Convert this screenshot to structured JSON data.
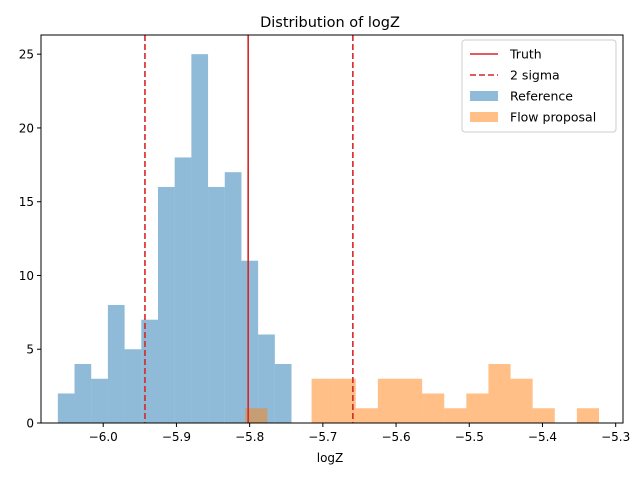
{
  "chart_data": {
    "type": "histogram",
    "title": "Distribution of logZ",
    "xlabel": "logZ",
    "ylabel": "",
    "xlim": [
      -6.085,
      -5.29
    ],
    "ylim": [
      0,
      26.3
    ],
    "xticks": [
      -6.0,
      -5.9,
      -5.8,
      -5.7,
      -5.6,
      -5.5,
      -5.4,
      -5.3
    ],
    "xtick_labels": [
      "−6.0",
      "−5.9",
      "−5.8",
      "−5.7",
      "−5.6",
      "−5.5",
      "−5.4",
      "−5.3"
    ],
    "yticks": [
      0,
      5,
      10,
      15,
      20,
      25
    ],
    "ytick_labels": [
      "0",
      "5",
      "10",
      "15",
      "20",
      "25"
    ],
    "grid": false,
    "legend_position": "top-right",
    "series": [
      {
        "name": "Reference",
        "color": "#1f77b4",
        "alpha": 0.5,
        "bin_edges": [
          -6.062,
          -6.0392,
          -6.0164,
          -5.9936,
          -5.9708,
          -5.948,
          -5.9252,
          -5.9024,
          -5.8796,
          -5.8568,
          -5.834,
          -5.8112,
          -5.7884,
          -5.7656,
          -5.7428
        ],
        "counts": [
          2,
          4,
          3,
          8,
          5,
          7,
          16,
          18,
          25,
          16,
          17,
          11,
          6,
          4
        ]
      },
      {
        "name": "Flow proposal",
        "color": "#ff7f0e",
        "alpha": 0.5,
        "bin_edges": [
          -5.806,
          -5.7758,
          -5.7456,
          -5.7154,
          -5.6852,
          -5.655,
          -5.6248,
          -5.5946,
          -5.5644,
          -5.5342,
          -5.504,
          -5.4738,
          -5.4436,
          -5.4134,
          -5.3832,
          -5.353,
          -5.3228
        ],
        "counts": [
          1,
          0,
          0,
          3,
          3,
          1,
          3,
          3,
          2,
          1,
          2,
          4,
          3,
          1,
          0,
          1
        ]
      },
      {
        "name": "Truth",
        "kind": "vline",
        "style": "solid",
        "color": "#d62728",
        "x": -5.802
      },
      {
        "name": "2 sigma",
        "kind": "vline",
        "style": "dashed",
        "color": "#d62728",
        "x": [
          -5.943,
          -5.659
        ]
      }
    ]
  }
}
